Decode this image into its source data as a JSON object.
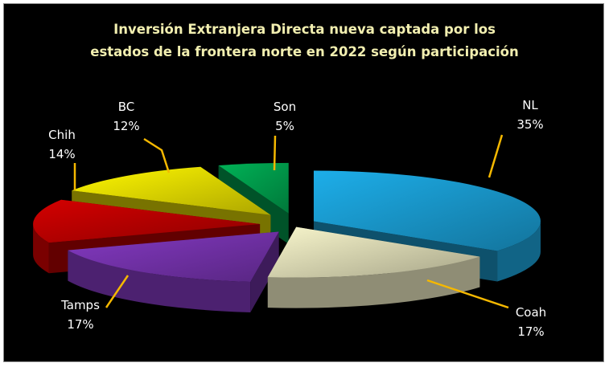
{
  "chart_data": {
    "type": "pie",
    "style": "3d-exploded",
    "title_lines": [
      "Inversión Extranjera Directa nueva captada por los",
      "estados de la frontera norte en 2022 según participación"
    ],
    "slices": [
      {
        "label": "NL",
        "value": 35,
        "display": "35%",
        "color": "#1ba1d8"
      },
      {
        "label": "Coah",
        "value": 17,
        "display": "17%",
        "color": "#e6e4bd"
      },
      {
        "label": "Tamps",
        "value": 17,
        "display": "17%",
        "color": "#7a35b4"
      },
      {
        "label": "Chih",
        "value": 14,
        "display": "14%",
        "color": "#c40000"
      },
      {
        "label": "BC",
        "value": 12,
        "display": "12%",
        "color": "#f0e600"
      },
      {
        "label": "Son",
        "value": 5,
        "display": "5%",
        "color": "#00a651"
      }
    ],
    "leader_line_color": "#f5b800",
    "background": "#000000"
  }
}
